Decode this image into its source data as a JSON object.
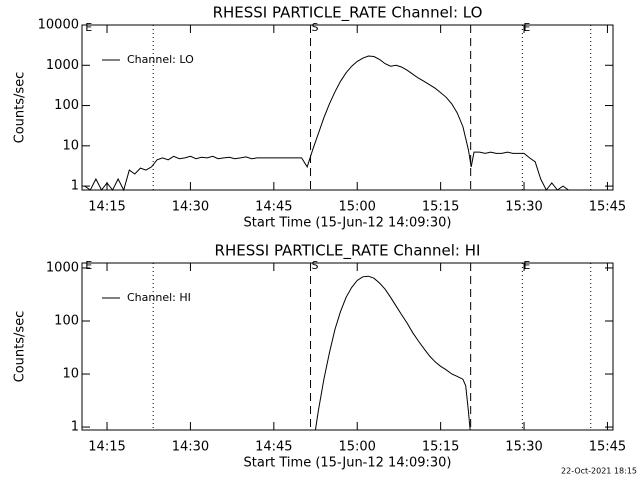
{
  "chart_data": [
    {
      "type": "line",
      "title": "RHESSI PARTICLE_RATE Channel: LO",
      "x_label": "Start Time (15-Jun-12 14:09:30)",
      "y_label": "Counts/sec",
      "log_y": true,
      "legend": "upper left",
      "xlim": [
        10.5,
        106
      ],
      "ylim": [
        0.8,
        10000
      ],
      "xticks": [
        {
          "value": 15,
          "label": "14:15"
        },
        {
          "value": 30,
          "label": "14:30"
        },
        {
          "value": 45,
          "label": "14:45"
        },
        {
          "value": 60,
          "label": "15:00"
        },
        {
          "value": 75,
          "label": "15:15"
        },
        {
          "value": 90,
          "label": "15:30"
        },
        {
          "value": 105,
          "label": "15:45"
        }
      ],
      "yticks": [
        1,
        10,
        100,
        1000,
        10000
      ],
      "vlines": [
        {
          "x": 23.3,
          "style": "dotted"
        },
        {
          "x": 51.6,
          "style": "dashed"
        },
        {
          "x": 80.4,
          "style": "dashed"
        },
        {
          "x": 89.7,
          "style": "dotted"
        },
        {
          "x": 102,
          "style": "dotted"
        }
      ],
      "annotations": [
        {
          "x": 10.9,
          "label": "E"
        },
        {
          "x": 51.6,
          "label": "S"
        },
        {
          "x": 89.7,
          "label": "E"
        }
      ],
      "series": [
        {
          "name": "Channel: LO",
          "color": "#000000",
          "x": [
            11,
            12,
            13,
            14,
            15,
            16,
            17,
            18,
            19,
            20,
            21,
            22,
            23,
            24,
            25,
            26,
            27,
            28,
            29,
            30,
            31,
            32,
            33,
            34,
            35,
            36,
            37,
            38,
            39,
            40,
            41,
            42,
            43,
            44,
            45,
            46,
            47,
            48,
            49,
            50,
            51,
            52,
            53,
            54,
            55,
            56,
            57,
            58,
            59,
            60,
            61,
            62,
            63,
            64,
            65,
            66,
            67,
            68,
            69,
            70,
            71,
            72,
            73,
            74,
            75,
            76,
            77,
            78,
            79,
            80,
            80.5,
            81,
            82,
            83,
            84,
            85,
            86,
            87,
            88,
            89,
            90,
            91,
            92,
            93,
            94,
            95,
            96,
            97,
            98
          ],
          "values": [
            1,
            0.8,
            1.5,
            0.8,
            1.2,
            0.8,
            1.5,
            0.8,
            2.5,
            2,
            2.8,
            2.5,
            3,
            4.5,
            5,
            4.5,
            5.5,
            4.8,
            5,
            5.5,
            4.8,
            5.2,
            5,
            5.5,
            4.8,
            5,
            5.2,
            4.8,
            5,
            5.3,
            4.8,
            5,
            5,
            5,
            5,
            5,
            5,
            5,
            5,
            5,
            3,
            8,
            20,
            50,
            110,
            220,
            400,
            650,
            950,
            1250,
            1500,
            1700,
            1650,
            1400,
            1100,
            950,
            1000,
            900,
            750,
            600,
            480,
            400,
            330,
            270,
            210,
            160,
            110,
            65,
            30,
            8,
            3,
            7,
            7,
            6.5,
            7,
            6.5,
            6.5,
            7,
            6.5,
            6.5,
            6.5,
            5,
            4,
            1.5,
            0.8,
            1.2,
            0.8,
            1,
            0.8
          ]
        }
      ]
    },
    {
      "type": "line",
      "title": "RHESSI PARTICLE_RATE Channel: HI",
      "x_label": "Start Time (15-Jun-12 14:09:30)",
      "y_label": "Counts/sec",
      "log_y": true,
      "legend": "upper left",
      "xlim": [
        10.5,
        106
      ],
      "ylim": [
        0.88,
        1240
      ],
      "xticks": [
        {
          "value": 15,
          "label": "14:15"
        },
        {
          "value": 30,
          "label": "14:30"
        },
        {
          "value": 45,
          "label": "14:45"
        },
        {
          "value": 60,
          "label": "15:00"
        },
        {
          "value": 75,
          "label": "15:15"
        },
        {
          "value": 90,
          "label": "15:30"
        },
        {
          "value": 105,
          "label": "15:45"
        }
      ],
      "yticks": [
        1,
        10,
        100,
        1000
      ],
      "vlines": [
        {
          "x": 23.3,
          "style": "dotted"
        },
        {
          "x": 51.6,
          "style": "dashed"
        },
        {
          "x": 80.4,
          "style": "dashed"
        },
        {
          "x": 89.7,
          "style": "dotted"
        },
        {
          "x": 102,
          "style": "dotted"
        }
      ],
      "annotations": [
        {
          "x": 10.9,
          "label": "E"
        },
        {
          "x": 51.6,
          "label": "S"
        },
        {
          "x": 89.7,
          "label": "E"
        }
      ],
      "series": [
        {
          "name": "Channel: HI",
          "color": "#000000",
          "x": [
            52.5,
            53,
            54,
            55,
            56,
            57,
            58,
            59,
            60,
            61,
            62,
            63,
            64,
            65,
            66,
            67,
            68,
            69,
            70,
            71,
            72,
            73,
            74,
            75,
            76,
            77,
            78,
            79,
            79.5,
            80,
            80.3
          ],
          "values": [
            0.9,
            2,
            8,
            25,
            70,
            150,
            280,
            430,
            580,
            680,
            700,
            640,
            520,
            400,
            280,
            190,
            130,
            90,
            60,
            42,
            30,
            22,
            17,
            14,
            12,
            10,
            9,
            8,
            6,
            2,
            0.9
          ]
        }
      ]
    }
  ],
  "footer": "22-Oct-2021 18:15"
}
